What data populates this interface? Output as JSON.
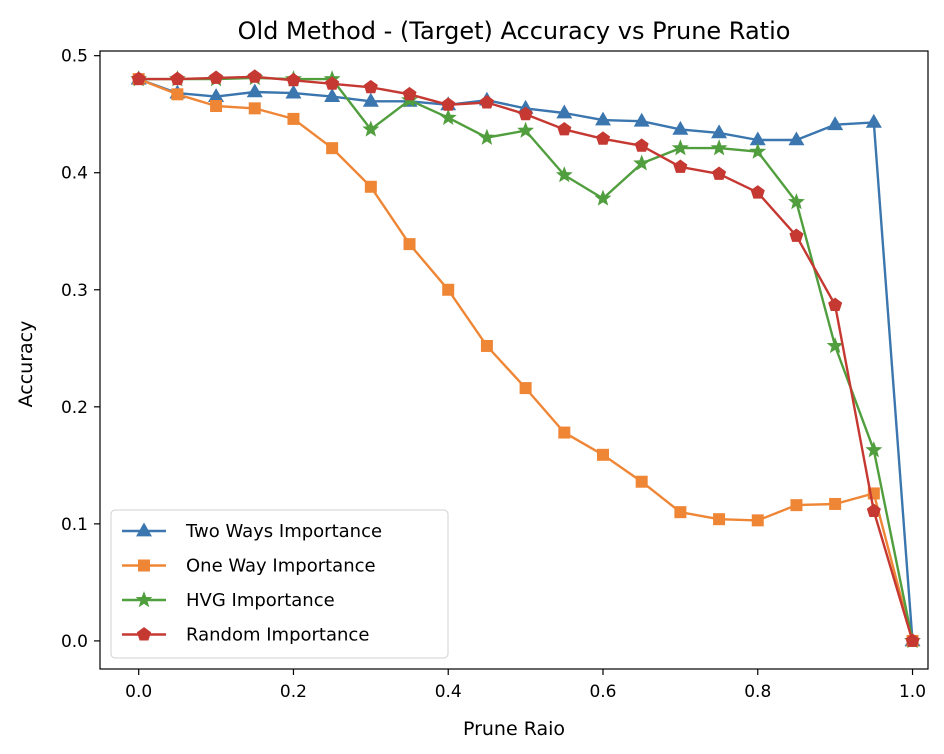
{
  "chart_data": {
    "type": "line",
    "title": "Old Method - (Target) Accuracy vs Prune Ratio",
    "xlabel": "Prune Raio",
    "ylabel": "Accuracy",
    "xlim": [
      -0.05,
      1.02
    ],
    "ylim": [
      -0.024,
      0.504
    ],
    "xticks": [
      0.0,
      0.2,
      0.4,
      0.6,
      0.8,
      1.0
    ],
    "xtick_labels": [
      "0.0",
      "0.2",
      "0.4",
      "0.6",
      "0.8",
      "1.0"
    ],
    "yticks": [
      0.0,
      0.1,
      0.2,
      0.3,
      0.4,
      0.5
    ],
    "ytick_labels": [
      "0.0",
      "0.1",
      "0.2",
      "0.3",
      "0.4",
      "0.5"
    ],
    "grid": false,
    "legend_position": "lower-left",
    "x": [
      0.0,
      0.05,
      0.1,
      0.15,
      0.2,
      0.25,
      0.3,
      0.35,
      0.4,
      0.45,
      0.5,
      0.55,
      0.6,
      0.65,
      0.7,
      0.75,
      0.8,
      0.85,
      0.9,
      0.95,
      1.0
    ],
    "series": [
      {
        "name": "Two Ways Importance",
        "color": "#3b76af",
        "marker": "triangle",
        "values": [
          0.48,
          0.468,
          0.465,
          0.469,
          0.468,
          0.465,
          0.461,
          0.461,
          0.458,
          0.462,
          0.455,
          0.451,
          0.445,
          0.444,
          0.437,
          0.434,
          0.428,
          0.428,
          0.441,
          0.443,
          0.0
        ]
      },
      {
        "name": "One Way Importance",
        "color": "#ef8636",
        "marker": "square",
        "values": [
          0.48,
          0.467,
          0.457,
          0.455,
          0.446,
          0.421,
          0.388,
          0.339,
          0.3,
          0.252,
          0.216,
          0.178,
          0.159,
          0.136,
          0.11,
          0.104,
          0.103,
          0.116,
          0.117,
          0.126,
          0.0
        ]
      },
      {
        "name": "HVG Importance",
        "color": "#519e3e",
        "marker": "star",
        "values": [
          0.48,
          0.48,
          0.48,
          0.481,
          0.48,
          0.48,
          0.437,
          0.462,
          0.447,
          0.43,
          0.436,
          0.398,
          0.378,
          0.408,
          0.421,
          0.421,
          0.418,
          0.375,
          0.252,
          0.163,
          0.0
        ]
      },
      {
        "name": "Random Importance",
        "color": "#c53932",
        "marker": "pentagon",
        "values": [
          0.48,
          0.48,
          0.481,
          0.482,
          0.479,
          0.476,
          0.473,
          0.467,
          0.458,
          0.46,
          0.45,
          0.437,
          0.429,
          0.423,
          0.405,
          0.399,
          0.383,
          0.346,
          0.287,
          0.111,
          0.0
        ]
      }
    ]
  }
}
